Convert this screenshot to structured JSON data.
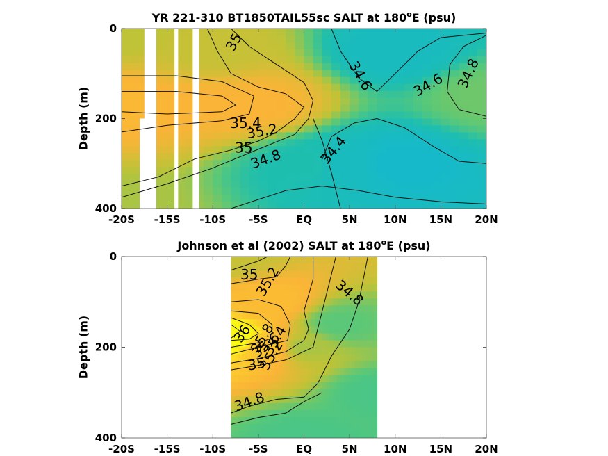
{
  "chart_data": [
    {
      "type": "heatmap",
      "title_main": "YR 221-310 BT1850TAIL55sc SALT at 180",
      "title_sup": "o",
      "title_end": "E (psu)",
      "ylabel": "Depth (m)",
      "xlabel": "",
      "xlim": [
        -20,
        20
      ],
      "ylim": [
        0,
        400
      ],
      "x_ticks": [
        -20,
        -15,
        -10,
        -5,
        0,
        5,
        10,
        15,
        20
      ],
      "x_tick_labels": [
        "-20S",
        "-15S",
        "-10S",
        "-5S",
        "EQ",
        "5N",
        "10N",
        "15N",
        "20N"
      ],
      "y_ticks": [
        0,
        200,
        400
      ],
      "y_tick_labels": [
        "0",
        "200",
        "400"
      ],
      "color_range": [
        34.3,
        36.0
      ],
      "masked_regions": [
        [
          -17.5,
          -16.2,
          0,
          200
        ],
        [
          -18.0,
          -16.2,
          200,
          400
        ],
        [
          -14.2,
          -13.8,
          0,
          400
        ],
        [
          -12.2,
          -11.5,
          0,
          400
        ]
      ],
      "salinity_field": [
        {
          "x": -20,
          "depth": 0,
          "salt": 35.05
        },
        {
          "x": -20,
          "depth": 170,
          "salt": 35.45
        },
        {
          "x": -20,
          "depth": 400,
          "salt": 35.0
        },
        {
          "x": -10,
          "depth": 50,
          "salt": 35.1
        },
        {
          "x": -10,
          "depth": 170,
          "salt": 35.4
        },
        {
          "x": -5,
          "depth": 170,
          "salt": 35.4
        },
        {
          "x": 0,
          "depth": 300,
          "salt": 34.6
        },
        {
          "x": 5,
          "depth": 300,
          "salt": 34.45
        },
        {
          "x": 10,
          "depth": 300,
          "salt": 34.35
        },
        {
          "x": 10,
          "depth": 50,
          "salt": 34.45
        },
        {
          "x": 20,
          "depth": 150,
          "salt": 34.85
        }
      ],
      "contours": [
        {
          "level": "35",
          "points": [
            [
              -10.6,
              0
            ],
            [
              -9.5,
              50
            ],
            [
              -8,
              100
            ],
            [
              -5,
              130
            ],
            [
              -2,
              145
            ],
            [
              0,
              175
            ],
            [
              -1,
              200
            ],
            [
              -3,
              230
            ],
            [
              -5,
              250
            ],
            [
              -8,
              270
            ],
            [
              -12,
              290
            ],
            [
              -16,
              330
            ],
            [
              -20,
              350
            ]
          ]
        },
        {
          "level": "34.8",
          "points": [
            [
              -8,
              0
            ],
            [
              -6,
              40
            ],
            [
              -3,
              80
            ],
            [
              0,
              120
            ],
            [
              1,
              160
            ],
            [
              0.5,
              200
            ],
            [
              -1,
              235
            ],
            [
              -4,
              260
            ],
            [
              -10,
              310
            ],
            [
              -15,
              345
            ],
            [
              -20,
              375
            ]
          ]
        },
        {
          "level": "35.2",
          "points": [
            [
              -20,
              105
            ],
            [
              -14,
              105
            ],
            [
              -9,
              118
            ],
            [
              -5.5,
              150
            ],
            [
              -6,
              190
            ],
            [
              -9,
              205
            ],
            [
              -15,
              215
            ],
            [
              -20,
              230
            ]
          ]
        },
        {
          "level": "35.4",
          "points": [
            [
              -20,
              140
            ],
            [
              -14,
              140
            ],
            [
              -9,
              150
            ],
            [
              -7.5,
              170
            ],
            [
              -9,
              185
            ],
            [
              -15,
              190
            ],
            [
              -20,
              185
            ]
          ]
        },
        {
          "level": "34.6",
          "points": [
            [
              3,
              0
            ],
            [
              4,
              50
            ],
            [
              6,
              110
            ],
            [
              8,
              140
            ],
            [
              10.5,
              90
            ],
            [
              12.5,
              50
            ],
            [
              15,
              20
            ],
            [
              20,
              10
            ]
          ]
        },
        {
          "level": "34.6",
          "points": [
            [
              1,
              200
            ],
            [
              2,
              250
            ],
            [
              3,
              320
            ],
            [
              4,
              400
            ]
          ]
        },
        {
          "level": "34.4",
          "points": [
            [
              2,
              290
            ],
            [
              3,
              240
            ],
            [
              5.5,
              210
            ],
            [
              8,
              200
            ],
            [
              11,
              220
            ],
            [
              14,
              260
            ],
            [
              17,
              295
            ],
            [
              20,
              300
            ]
          ]
        },
        {
          "level": "34.8",
          "points": [
            [
              20,
              15
            ],
            [
              17.5,
              40
            ],
            [
              16,
              80
            ],
            [
              15.7,
              140
            ],
            [
              17,
              180
            ],
            [
              20,
              195
            ]
          ]
        },
        {
          "level": "34.8",
          "points": [
            [
              -8,
              400
            ],
            [
              -5,
              380
            ],
            [
              -2,
              360
            ],
            [
              2,
              350
            ],
            [
              6,
              360
            ],
            [
              10,
              375
            ],
            [
              15,
              385
            ],
            [
              20,
              390
            ]
          ]
        }
      ],
      "contour_labels": [
        {
          "text": "35",
          "x": -7.7,
          "depth": 30,
          "angle": -60
        },
        {
          "text": "34.6",
          "x": 6.2,
          "depth": 105,
          "angle": 60
        },
        {
          "text": "34.6",
          "x": 13.6,
          "depth": 125,
          "angle": -30
        },
        {
          "text": "34.8",
          "x": 18.0,
          "depth": 100,
          "angle": -65
        },
        {
          "text": "35.4",
          "x": -6.4,
          "depth": 210,
          "angle": 0
        },
        {
          "text": "35.2",
          "x": -4.6,
          "depth": 228,
          "angle": -10
        },
        {
          "text": "35",
          "x": -6.6,
          "depth": 265,
          "angle": 0
        },
        {
          "text": "34.8",
          "x": -4.2,
          "depth": 290,
          "angle": -20
        },
        {
          "text": "34.4",
          "x": 3.2,
          "depth": 270,
          "angle": -50
        }
      ]
    },
    {
      "type": "heatmap",
      "title_main": "Johnson et al (2002) SALT at 180",
      "title_sup": "o",
      "title_end": "E (psu)",
      "ylabel": "Depth (m)",
      "xlabel": "",
      "xlim": [
        -20,
        20
      ],
      "ylim": [
        0,
        400
      ],
      "x_ticks": [
        -20,
        -15,
        -10,
        -5,
        0,
        5,
        10,
        15,
        20
      ],
      "x_tick_labels": [
        "-20S",
        "-15S",
        "-10S",
        "-5S",
        "EQ",
        "5N",
        "10N",
        "15N",
        "20N"
      ],
      "y_ticks": [
        0,
        200,
        400
      ],
      "y_tick_labels": [
        "0",
        "200",
        "400"
      ],
      "color_range": [
        34.3,
        36.0
      ],
      "data_extent_x": [
        -8,
        8
      ],
      "data_extent_y": [
        0,
        400
      ],
      "salinity_field": [
        {
          "x": -8,
          "depth": 0,
          "salt": 35.1
        },
        {
          "x": -8,
          "depth": 180,
          "salt": 36.1
        },
        {
          "x": -4,
          "depth": 100,
          "salt": 35.5
        },
        {
          "x": -4,
          "depth": 200,
          "salt": 35.6
        },
        {
          "x": 0,
          "depth": 200,
          "salt": 35.0
        },
        {
          "x": 4,
          "depth": 150,
          "salt": 34.8
        },
        {
          "x": 8,
          "depth": 300,
          "salt": 34.75
        },
        {
          "x": 0,
          "depth": 400,
          "salt": 34.75
        }
      ],
      "contours": [
        {
          "level": "35",
          "points": [
            [
              -8,
              30
            ],
            [
              -6.5,
              20
            ],
            [
              -5,
              10
            ],
            [
              -4,
              0
            ]
          ]
        },
        {
          "level": "35.2",
          "points": [
            [
              -8,
              60
            ],
            [
              -5,
              50
            ],
            [
              -3,
              45
            ],
            [
              -2,
              20
            ],
            [
              -1.5,
              0
            ]
          ]
        },
        {
          "level": "35.4",
          "points": [
            [
              -8,
              100
            ],
            [
              -5,
              95
            ],
            [
              -2.5,
              110
            ],
            [
              -1.5,
              150
            ],
            [
              -1.8,
              185
            ],
            [
              -4,
              195
            ],
            [
              -8,
              215
            ]
          ]
        },
        {
          "level": "35.6",
          "points": [
            [
              -8,
              120
            ],
            [
              -5,
              125
            ],
            [
              -3.5,
              150
            ],
            [
              -3.5,
              180
            ],
            [
              -5,
              190
            ],
            [
              -8,
              200
            ]
          ]
        },
        {
          "level": "35.8",
          "points": [
            [
              -8,
              135
            ],
            [
              -6,
              150
            ],
            [
              -5,
              170
            ],
            [
              -6,
              182
            ],
            [
              -8,
              185
            ]
          ]
        },
        {
          "level": "36",
          "points": [
            [
              -8,
              150
            ],
            [
              -7,
              165
            ],
            [
              -8,
              180
            ]
          ]
        },
        {
          "level": "35.2",
          "points": [
            [
              -8,
              235
            ],
            [
              -5,
              225
            ],
            [
              -2,
              210
            ],
            [
              0,
              185
            ],
            [
              0.5,
              160
            ],
            [
              0,
              120
            ],
            [
              1,
              50
            ],
            [
              1,
              0
            ]
          ]
        },
        {
          "level": "35",
          "points": [
            [
              -8,
              250
            ],
            [
              -5,
              240
            ],
            [
              -2,
              228
            ],
            [
              1,
              200
            ],
            [
              2,
              120
            ],
            [
              3,
              40
            ],
            [
              3.5,
              0
            ]
          ]
        },
        {
          "level": "34.8",
          "points": [
            [
              -8,
              345
            ],
            [
              -6,
              330
            ],
            [
              -3,
              315
            ],
            [
              0,
              310
            ],
            [
              1.5,
              280
            ],
            [
              3,
              220
            ],
            [
              5,
              160
            ],
            [
              6,
              100
            ],
            [
              7,
              0
            ]
          ]
        },
        {
          "level": "34.8",
          "points": [
            [
              -8,
              370
            ],
            [
              -5,
              355
            ],
            [
              -2,
              345
            ],
            [
              0,
              320
            ],
            [
              2,
              300
            ]
          ]
        }
      ],
      "contour_labels": [
        {
          "text": "35",
          "x": -6.0,
          "depth": 40,
          "angle": 0
        },
        {
          "text": "35.2",
          "x": -4.0,
          "depth": 55,
          "angle": -60
        },
        {
          "text": "34.8",
          "x": 5.0,
          "depth": 80,
          "angle": 40
        },
        {
          "text": "36",
          "x": -6.8,
          "depth": 170,
          "angle": -55
        },
        {
          "text": "35.8",
          "x": -4.6,
          "depth": 180,
          "angle": -60
        },
        {
          "text": "35.4",
          "x": -3.2,
          "depth": 185,
          "angle": -60
        },
        {
          "text": "35.6",
          "x": -4.2,
          "depth": 195,
          "angle": -40
        },
        {
          "text": "35.2",
          "x": -3.6,
          "depth": 218,
          "angle": -60
        },
        {
          "text": "35",
          "x": -5.2,
          "depth": 237,
          "angle": -10
        },
        {
          "text": "34.8",
          "x": -6.0,
          "depth": 320,
          "angle": -20
        }
      ]
    }
  ]
}
